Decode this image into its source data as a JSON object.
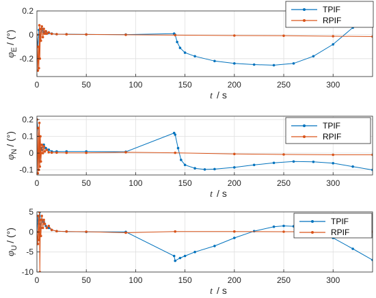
{
  "chart_data": [
    {
      "type": "line",
      "ylabel_symbol": "φ",
      "ylabel_sub": "E",
      "ylabel_unit": "/ (°)",
      "xlabel_symbol": "t",
      "xlabel_unit": "/ s",
      "xlim": [
        0,
        340
      ],
      "ylim": [
        -0.35,
        0.2
      ],
      "xticks": [
        0,
        50,
        100,
        150,
        200,
        250,
        300
      ],
      "yticks": [
        -0.2,
        0,
        0.2
      ],
      "ytick_labels": [
        "-0.2",
        "0",
        "0.2"
      ],
      "grid": true,
      "legend_position": "top-right",
      "series": [
        {
          "name": "TPIF",
          "color": "#0072bd",
          "x": [
            0,
            1,
            2,
            3,
            5,
            7,
            9,
            12,
            15,
            20,
            30,
            50,
            90,
            139,
            140,
            142,
            145,
            150,
            160,
            180,
            200,
            220,
            240,
            260,
            280,
            300,
            320,
            340
          ],
          "y": [
            0,
            -0.1,
            0.04,
            -0.02,
            0.05,
            0.02,
            0.03,
            0.015,
            0.01,
            0.005,
            0.005,
            0.003,
            0.002,
            0.01,
            0.0,
            -0.06,
            -0.11,
            -0.15,
            -0.18,
            -0.22,
            -0.24,
            -0.25,
            -0.255,
            -0.24,
            -0.18,
            -0.08,
            0.06,
            0.21
          ]
        },
        {
          "name": "RPIF",
          "color": "#d95319",
          "x": [
            0,
            1,
            1.5,
            2,
            2.5,
            3,
            3.5,
            4,
            5,
            6,
            7,
            8,
            9,
            10,
            12,
            15,
            20,
            30,
            50,
            90,
            140,
            200,
            250,
            300,
            340
          ],
          "y": [
            0,
            -0.3,
            -0.1,
            -0.28,
            0.08,
            -0.2,
            0.05,
            -0.05,
            0.07,
            -0.02,
            0.05,
            0.01,
            0.03,
            0.01,
            0.02,
            0.008,
            0.005,
            0.004,
            0.003,
            0.0,
            -0.003,
            -0.006,
            -0.008,
            -0.012,
            -0.015
          ]
        }
      ]
    },
    {
      "type": "line",
      "ylabel_symbol": "φ",
      "ylabel_sub": "N",
      "ylabel_unit": "/ (°)",
      "xlabel_symbol": "t",
      "xlabel_unit": "/ s",
      "xlim": [
        0,
        340
      ],
      "ylim": [
        -0.13,
        0.22
      ],
      "xticks": [
        0,
        50,
        100,
        150,
        200,
        250,
        300
      ],
      "yticks": [
        -0.1,
        0,
        0.1,
        0.2
      ],
      "ytick_labels": [
        "-0.1",
        "0",
        "0.1",
        "0.2"
      ],
      "grid": true,
      "legend_position": "top-right",
      "series": [
        {
          "name": "TPIF",
          "color": "#0072bd",
          "x": [
            0,
            1,
            2,
            3,
            4,
            5,
            7,
            9,
            12,
            15,
            20,
            30,
            50,
            90,
            139,
            140,
            143,
            146,
            150,
            160,
            170,
            180,
            200,
            220,
            240,
            260,
            280,
            300,
            320,
            340
          ],
          "y": [
            0.2,
            0.15,
            0.1,
            -0.05,
            0.03,
            0.02,
            0.05,
            0.03,
            0.02,
            0.01,
            0.01,
            0.01,
            0.01,
            0.008,
            0.12,
            0.11,
            0.03,
            -0.04,
            -0.07,
            -0.09,
            -0.097,
            -0.095,
            -0.085,
            -0.07,
            -0.058,
            -0.05,
            -0.052,
            -0.06,
            -0.08,
            -0.1
          ]
        },
        {
          "name": "RPIF",
          "color": "#d95319",
          "x": [
            0,
            1,
            1.5,
            2,
            2.5,
            3,
            3.5,
            4,
            5,
            6,
            7,
            8,
            10,
            12,
            15,
            20,
            30,
            50,
            90,
            140,
            200,
            250,
            300,
            340
          ],
          "y": [
            0.2,
            -0.12,
            0.15,
            -0.1,
            0.18,
            -0.08,
            0.1,
            -0.05,
            0.05,
            0.0,
            0.04,
            0.01,
            0.02,
            0.005,
            0.003,
            0.003,
            0.002,
            0.002,
            0.005,
            0.002,
            -0.005,
            -0.008,
            -0.01,
            -0.01
          ]
        }
      ]
    },
    {
      "type": "line",
      "ylabel_symbol": "φ",
      "ylabel_sub": "U",
      "ylabel_unit": "/ (°)",
      "xlabel_symbol": "t",
      "xlabel_unit": "/ s",
      "xlim": [
        0,
        340
      ],
      "ylim": [
        -10,
        5
      ],
      "xticks": [
        0,
        50,
        100,
        150,
        200,
        250,
        300
      ],
      "yticks": [
        -10,
        -5,
        0,
        5
      ],
      "ytick_labels": [
        "-10",
        "-5",
        "0",
        "5"
      ],
      "grid": true,
      "legend_position": "top-right",
      "series": [
        {
          "name": "TPIF",
          "color": "#0072bd",
          "x": [
            0,
            1,
            2,
            3,
            4,
            5,
            7,
            9,
            12,
            15,
            20,
            30,
            50,
            90,
            139,
            140,
            145,
            150,
            160,
            180,
            200,
            220,
            240,
            250,
            260,
            280,
            300,
            320,
            340
          ],
          "y": [
            0,
            4,
            2,
            5,
            1,
            3,
            2.5,
            1.5,
            1,
            0.5,
            0.2,
            0.1,
            0.0,
            0.0,
            -6,
            -7.2,
            -6.5,
            -6,
            -5,
            -3.5,
            -1.5,
            0.2,
            1.3,
            1.5,
            1.4,
            0.5,
            -1.5,
            -4.2,
            -7
          ]
        },
        {
          "name": "RPIF",
          "color": "#d95319",
          "x": [
            0,
            1,
            1.5,
            2,
            2.5,
            3,
            3.5,
            4,
            5,
            6,
            7,
            8,
            10,
            12,
            15,
            20,
            30,
            50,
            90,
            140,
            200,
            250,
            300,
            340
          ],
          "y": [
            0,
            -3,
            4,
            -2,
            5,
            -10,
            3,
            -1,
            4,
            1,
            3,
            2,
            1,
            1.5,
            0.5,
            0.2,
            0.1,
            0.05,
            -0.2,
            0.1,
            0.1,
            0.05,
            0.05,
            0.05
          ]
        }
      ]
    }
  ]
}
